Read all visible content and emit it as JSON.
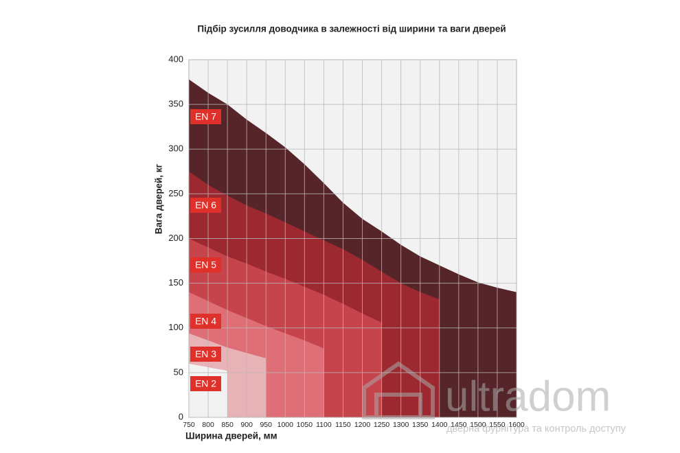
{
  "chart_data": {
    "type": "area",
    "title": "Підбір зусилля доводчика в залежності від ширини та ваги дверей",
    "x_label": "Ширина дверей, мм",
    "y_label": "Вага дверей, кг",
    "xlim": [
      750,
      1600
    ],
    "xticks": [
      750,
      800,
      850,
      900,
      950,
      1000,
      1050,
      1100,
      1150,
      1200,
      1250,
      1300,
      1350,
      1400,
      1450,
      1500,
      1550,
      1600
    ],
    "ylim": [
      0,
      400
    ],
    "yticks": [
      0,
      50,
      100,
      150,
      200,
      250,
      300,
      350,
      400
    ],
    "grid": true,
    "series": [
      {
        "name": "EN 7",
        "color": "#55252a",
        "x": [
          750,
          800,
          850,
          900,
          950,
          1000,
          1050,
          1100,
          1150,
          1200,
          1250,
          1300,
          1350,
          1400,
          1450,
          1500,
          1550,
          1600
        ],
        "values": [
          378,
          363,
          350,
          333,
          318,
          302,
          283,
          262,
          240,
          222,
          208,
          193,
          180,
          170,
          160,
          151,
          145,
          140
        ]
      },
      {
        "name": "EN 6",
        "color": "#9d2930",
        "x": [
          750,
          800,
          850,
          900,
          950,
          1000,
          1050,
          1100,
          1150,
          1200,
          1250,
          1300,
          1350,
          1400
        ],
        "values": [
          275,
          260,
          248,
          237,
          228,
          218,
          208,
          198,
          188,
          176,
          163,
          150,
          140,
          132
        ]
      },
      {
        "name": "EN 5",
        "color": "#c6444b",
        "x": [
          750,
          800,
          850,
          900,
          950,
          1000,
          1050,
          1100,
          1150,
          1200,
          1250
        ],
        "values": [
          200,
          190,
          180,
          172,
          163,
          155,
          146,
          137,
          127,
          116,
          106
        ]
      },
      {
        "name": "EN 4",
        "color": "#df6f77",
        "x": [
          750,
          800,
          850,
          900,
          950,
          1000,
          1050,
          1100
        ],
        "values": [
          140,
          130,
          120,
          111,
          102,
          94,
          86,
          77
        ]
      },
      {
        "name": "EN 3",
        "color": "#e8b3b7",
        "x": [
          750,
          800,
          850,
          900,
          950
        ],
        "values": [
          94,
          86,
          78,
          72,
          66
        ]
      },
      {
        "name": "EN 2",
        "color": "#f2f2f2",
        "x": [
          750,
          800,
          850
        ],
        "values": [
          60,
          56,
          52
        ]
      }
    ]
  },
  "watermark": {
    "brand": "ultradom",
    "tagline": "дверна фурнітура та контроль доступу"
  }
}
